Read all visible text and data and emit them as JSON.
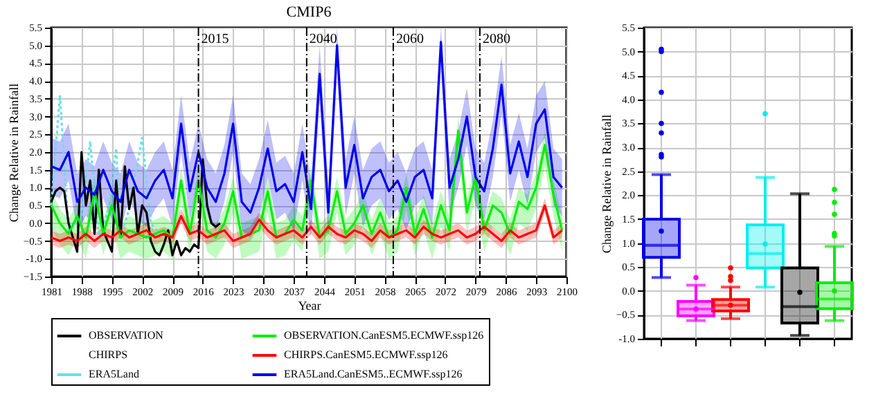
{
  "chart_data": [
    {
      "type": "line",
      "title": "CMIP6",
      "xlabel": "Year",
      "ylabel": "Change Relative in Rainfall",
      "xlim": [
        1981,
        2100
      ],
      "xticks": [
        1981,
        1988,
        1995,
        2002,
        2009,
        2016,
        2023,
        2030,
        2037,
        2044,
        2051,
        2058,
        2065,
        2072,
        2079,
        2086,
        2093,
        2100
      ],
      "ylim": [
        -1.5,
        5.5
      ],
      "yticks": [
        -1.5,
        {
          "value": -1,
          "label": "-1.0"
        },
        -0.5,
        {
          "value": 0,
          "label": "0.0"
        },
        0.5,
        {
          "value": 1,
          "label": "1.0"
        },
        1.5,
        {
          "value": 2,
          "label": "2.0"
        },
        2.5,
        {
          "value": 3,
          "label": "3.0"
        },
        3.5,
        {
          "value": 4,
          "label": "4.0"
        },
        4.5,
        {
          "value": 5,
          "label": "5.0"
        },
        5.5
      ],
      "grid": true,
      "legend": "bottom",
      "line_style": "solid",
      "ref_lines": [
        {
          "axis": "x",
          "value": 2015,
          "label": "2015"
        },
        {
          "axis": "x",
          "value": 2040,
          "label": "2040"
        },
        {
          "axis": "x",
          "value": 2060,
          "label": "2060"
        },
        {
          "axis": "x",
          "value": 2080,
          "label": "2080"
        }
      ],
      "series": [
        {
          "name": "OBSERVATION",
          "color": "#000000",
          "x": [
            1981,
            1982,
            1983,
            1984,
            1985,
            1986,
            1987,
            1988,
            1989,
            1990,
            1991,
            1992,
            1993,
            1994,
            1995,
            1996,
            1997,
            1998,
            1999,
            2000,
            2001,
            2002,
            2003,
            2004,
            2005,
            2006,
            2007,
            2008,
            2009,
            2010,
            2011,
            2012,
            2013,
            2014,
            2015,
            2016,
            2017,
            2018,
            2019,
            2020
          ],
          "values": [
            0.6,
            0.9,
            1.0,
            0.9,
            0.0,
            -0.4,
            -0.8,
            2.0,
            0.5,
            1.2,
            -0.3,
            1.5,
            -0.2,
            -0.5,
            -0.8,
            1.2,
            -0.4,
            1.6,
            0.4,
            1.0,
            -0.3,
            0.5,
            0.3,
            -0.5,
            -0.8,
            -0.9,
            -0.6,
            -0.2,
            -0.9,
            -0.5,
            -0.9,
            -0.7,
            -0.8,
            -0.6,
            -0.7,
            1.8,
            0.5,
            0.0,
            -0.1,
            0.0
          ]
        },
        {
          "name": "OBSERVATION.CanESM5.ECMWF.ssp126",
          "color": "#00ee00",
          "x": [
            1981,
            1983,
            1985,
            1987,
            1989,
            1991,
            1993,
            1995,
            1997,
            1999,
            2001,
            2003,
            2005,
            2007,
            2009,
            2011,
            2013,
            2015,
            2017,
            2019,
            2021,
            2023,
            2025,
            2027,
            2029,
            2031,
            2033,
            2035,
            2037,
            2039,
            2041,
            2043,
            2045,
            2047,
            2049,
            2051,
            2053,
            2055,
            2057,
            2059,
            2061,
            2063,
            2065,
            2067,
            2069,
            2071,
            2073,
            2075,
            2077,
            2079,
            2081,
            2083,
            2085,
            2087,
            2089,
            2091,
            2093,
            2095,
            2097,
            2099
          ],
          "values": [
            0.5,
            0.0,
            -0.3,
            0.2,
            -0.4,
            0.9,
            -0.3,
            0.5,
            -0.4,
            -0.2,
            -0.3,
            -0.4,
            -0.3,
            -0.2,
            -0.4,
            1.2,
            -0.3,
            1.2,
            -0.2,
            -0.4,
            0.0,
            0.9,
            -0.4,
            -0.3,
            -0.2,
            0.9,
            -0.4,
            -0.3,
            0.1,
            -0.2,
            1.2,
            -0.4,
            -0.2,
            0.9,
            -0.3,
            0.0,
            0.5,
            -0.3,
            0.3,
            -0.4,
            -0.2,
            1.0,
            -0.3,
            0.4,
            -0.4,
            0.5,
            -0.2,
            2.6,
            0.3,
            1.3,
            -0.2,
            0.5,
            0.3,
            -0.3,
            0.6,
            0.4,
            1.0,
            2.2,
            0.8,
            -0.2
          ],
          "upper": [
            0.9,
            0.4,
            0.1,
            0.6,
            0.0,
            1.3,
            0.1,
            0.9,
            0.0,
            0.2,
            0.1,
            0.0,
            0.1,
            0.2,
            0.0,
            1.6,
            0.1,
            1.6,
            0.2,
            0.0,
            0.4,
            1.3,
            0.0,
            0.1,
            0.2,
            1.3,
            0.0,
            0.1,
            0.5,
            0.2,
            1.6,
            0.0,
            0.2,
            1.3,
            0.1,
            0.4,
            0.9,
            0.1,
            0.7,
            0.0,
            0.2,
            1.4,
            0.1,
            0.8,
            0.0,
            0.9,
            0.2,
            3.0,
            0.7,
            1.7,
            0.2,
            0.9,
            0.7,
            0.1,
            1.0,
            0.8,
            1.4,
            2.6,
            1.2,
            0.2
          ],
          "lower": [
            -0.1,
            -0.6,
            -0.9,
            -0.4,
            -1.0,
            0.3,
            -0.9,
            -0.1,
            -1.0,
            -0.8,
            -0.9,
            -1.0,
            -0.9,
            -0.8,
            -1.0,
            0.6,
            -0.9,
            0.6,
            -0.8,
            -1.0,
            -0.6,
            0.3,
            -1.0,
            -0.9,
            -0.8,
            0.3,
            -1.0,
            -0.9,
            -0.5,
            -0.8,
            0.6,
            -1.0,
            -0.8,
            0.3,
            -0.9,
            -0.6,
            -0.1,
            -0.9,
            -0.3,
            -1.0,
            -0.8,
            0.4,
            -0.9,
            -0.2,
            -1.0,
            -0.1,
            -0.8,
            2.0,
            -0.3,
            0.7,
            -0.8,
            -0.1,
            -0.3,
            -0.9,
            0.0,
            -0.2,
            0.4,
            1.6,
            0.2,
            -0.8
          ]
        },
        {
          "name": "CHIRPS"
        },
        {
          "name": "CHIRPS.CanESM5.ECMWF.ssp126",
          "color": "#ff0000",
          "x": [
            1981,
            1983,
            1985,
            1987,
            1989,
            1991,
            1993,
            1995,
            1997,
            1999,
            2001,
            2003,
            2005,
            2007,
            2009,
            2011,
            2013,
            2015,
            2017,
            2019,
            2021,
            2023,
            2025,
            2027,
            2029,
            2031,
            2033,
            2035,
            2037,
            2039,
            2041,
            2043,
            2045,
            2047,
            2049,
            2051,
            2053,
            2055,
            2057,
            2059,
            2061,
            2063,
            2065,
            2067,
            2069,
            2071,
            2073,
            2075,
            2077,
            2079,
            2081,
            2083,
            2085,
            2087,
            2089,
            2091,
            2093,
            2095,
            2097,
            2099
          ],
          "values": [
            -0.4,
            -0.5,
            -0.4,
            -0.5,
            -0.3,
            -0.5,
            -0.3,
            -0.4,
            -0.2,
            -0.4,
            -0.3,
            -0.2,
            -0.4,
            -0.3,
            -0.4,
            0.2,
            -0.3,
            -0.2,
            -0.4,
            -0.3,
            -0.2,
            -0.5,
            -0.4,
            -0.3,
            0.1,
            -0.2,
            -0.4,
            -0.3,
            -0.2,
            -0.4,
            -0.1,
            -0.4,
            -0.1,
            -0.3,
            -0.4,
            -0.2,
            -0.3,
            -0.5,
            -0.2,
            -0.4,
            -0.3,
            -0.2,
            -0.4,
            -0.1,
            -0.3,
            -0.4,
            -0.3,
            -0.2,
            -0.4,
            -0.3,
            -0.1,
            -0.3,
            -0.5,
            -0.2,
            -0.4,
            -0.3,
            -0.2,
            0.5,
            -0.4,
            -0.2
          ],
          "upper": [
            -0.2,
            -0.3,
            -0.2,
            -0.3,
            -0.1,
            -0.3,
            -0.1,
            -0.2,
            0.0,
            -0.2,
            -0.1,
            0.0,
            -0.2,
            -0.1,
            -0.2,
            0.4,
            -0.1,
            0.0,
            -0.2,
            -0.1,
            0.0,
            -0.3,
            -0.2,
            -0.1,
            0.3,
            0.0,
            -0.2,
            -0.1,
            0.0,
            -0.2,
            0.1,
            -0.2,
            0.1,
            -0.1,
            -0.2,
            0.0,
            -0.1,
            -0.3,
            0.0,
            -0.2,
            -0.1,
            0.0,
            -0.2,
            0.1,
            -0.1,
            -0.2,
            -0.1,
            0.0,
            -0.2,
            -0.1,
            0.1,
            -0.1,
            -0.3,
            0.0,
            -0.2,
            -0.1,
            0.0,
            0.7,
            -0.2,
            0.0
          ],
          "lower": [
            -0.6,
            -0.7,
            -0.6,
            -0.7,
            -0.5,
            -0.7,
            -0.5,
            -0.6,
            -0.4,
            -0.6,
            -0.5,
            -0.4,
            -0.6,
            -0.5,
            -0.6,
            0.0,
            -0.5,
            -0.4,
            -0.6,
            -0.5,
            -0.4,
            -0.7,
            -0.6,
            -0.5,
            -0.1,
            -0.4,
            -0.6,
            -0.5,
            -0.4,
            -0.6,
            -0.3,
            -0.6,
            -0.3,
            -0.5,
            -0.6,
            -0.4,
            -0.5,
            -0.7,
            -0.4,
            -0.6,
            -0.5,
            -0.4,
            -0.6,
            -0.3,
            -0.5,
            -0.6,
            -0.5,
            -0.4,
            -0.6,
            -0.5,
            -0.3,
            -0.5,
            -0.7,
            -0.4,
            -0.6,
            -0.5,
            -0.4,
            0.3,
            -0.6,
            -0.4
          ]
        },
        {
          "name": "ERA5Land",
          "color": "#66e0e8",
          "line_style": "dotted",
          "x": [
            1981,
            1983,
            1985,
            1988,
            1990,
            1992,
            1994,
            1996,
            1997,
            1999,
            2002,
            2004,
            2006
          ],
          "values": [
            0.5,
            3.6,
            -0.2,
            0.2,
            2.3,
            -0.5,
            0.3,
            2.1,
            -0.4,
            0.4,
            2.4,
            0.0,
            -0.3
          ]
        },
        {
          "name": "ERA5Land.CanESM5..ECMWF.ssp126",
          "color": "#0000ee",
          "x": [
            1981,
            1983,
            1985,
            1987,
            1989,
            1991,
            1993,
            1995,
            1997,
            1999,
            2001,
            2003,
            2005,
            2007,
            2009,
            2011,
            2013,
            2015,
            2017,
            2019,
            2021,
            2023,
            2025,
            2027,
            2029,
            2031,
            2033,
            2035,
            2037,
            2039,
            2041,
            2043,
            2045,
            2047,
            2049,
            2051,
            2053,
            2055,
            2057,
            2059,
            2061,
            2063,
            2065,
            2067,
            2069,
            2071,
            2073,
            2075,
            2077,
            2079,
            2081,
            2083,
            2085,
            2087,
            2089,
            2091,
            2093,
            2095,
            2097,
            2099
          ],
          "values": [
            1.6,
            1.5,
            2.0,
            0.6,
            1.0,
            0.8,
            1.5,
            0.9,
            0.6,
            1.5,
            0.9,
            0.7,
            1.2,
            1.5,
            0.7,
            2.8,
            0.9,
            2.0,
            1.0,
            0.6,
            1.4,
            2.8,
            0.6,
            0.3,
            1.0,
            2.1,
            0.9,
            1.1,
            0.6,
            2.0,
            0.4,
            4.2,
            0.3,
            5.0,
            1.0,
            2.2,
            0.7,
            1.3,
            1.5,
            0.9,
            1.2,
            0.6,
            1.3,
            1.5,
            0.7,
            5.1,
            1.0,
            1.8,
            3.0,
            1.3,
            0.9,
            2.1,
            3.9,
            1.4,
            2.3,
            1.3,
            2.8,
            3.2,
            1.3,
            1.0
          ],
          "upper": [
            2.4,
            2.3,
            2.8,
            1.4,
            1.8,
            1.6,
            2.3,
            1.7,
            1.4,
            2.3,
            1.7,
            1.5,
            2.0,
            2.3,
            1.5,
            3.6,
            1.7,
            2.8,
            1.8,
            1.4,
            2.2,
            3.6,
            1.4,
            1.1,
            1.8,
            2.9,
            1.7,
            1.9,
            1.4,
            2.8,
            1.2,
            5.0,
            1.1,
            5.5,
            1.8,
            3.0,
            1.5,
            2.1,
            2.3,
            1.7,
            2.0,
            1.4,
            2.1,
            2.3,
            1.5,
            5.5,
            1.8,
            2.6,
            3.8,
            2.1,
            1.7,
            2.9,
            4.7,
            2.2,
            3.1,
            2.1,
            3.6,
            4.0,
            2.1,
            1.8
          ],
          "lower": [
            0.8,
            0.7,
            1.2,
            -0.2,
            0.2,
            0.0,
            0.7,
            0.1,
            -0.2,
            0.7,
            0.1,
            -0.1,
            0.4,
            0.7,
            -0.1,
            2.0,
            0.1,
            1.2,
            0.2,
            -0.2,
            0.6,
            2.0,
            -0.2,
            -0.4,
            0.2,
            1.3,
            0.1,
            0.3,
            -0.2,
            1.2,
            -0.4,
            3.4,
            -0.4,
            4.2,
            0.2,
            1.4,
            -0.1,
            0.5,
            0.7,
            0.1,
            0.4,
            -0.2,
            0.5,
            0.7,
            -0.1,
            4.3,
            0.2,
            1.0,
            2.2,
            0.5,
            0.1,
            1.3,
            3.1,
            0.6,
            1.5,
            0.5,
            2.0,
            2.4,
            0.5,
            0.2
          ]
        }
      ]
    },
    {
      "type": "box",
      "ylabel": "Change Relative in Rainfall",
      "ylim": [
        -1.0,
        5.5
      ],
      "yticks": [
        {
          "value": -1,
          "label": "-1.0"
        },
        -0.5,
        {
          "value": 0,
          "label": "0.0"
        },
        0.5,
        {
          "value": 1,
          "label": "1.0"
        },
        1.5,
        {
          "value": 2,
          "label": "2.0"
        },
        2.5,
        {
          "value": 3,
          "label": "3.0"
        },
        3.5,
        {
          "value": 4,
          "label": "4.0"
        },
        4.5,
        {
          "value": 5,
          "label": "5.0"
        },
        5.5
      ],
      "grid": true,
      "categories": [
        null,
        null,
        null,
        null,
        null,
        null
      ],
      "colors": [
        "#0000ee",
        "#ff00ff",
        "#ff0000",
        "#00eeee",
        "#000000",
        "#00ee00"
      ],
      "boxes": [
        {
          "low": 0.28,
          "q1": 0.7,
          "median": 0.95,
          "q3": 1.5,
          "high": 2.43,
          "mean": 1.25,
          "outliers": [
            2.8,
            2.85,
            3.3,
            3.5,
            4.15,
            5.0,
            5.05
          ]
        },
        {
          "low": -0.62,
          "q1": -0.52,
          "median": -0.38,
          "q3": -0.22,
          "high": 0.12,
          "mean": -0.38,
          "outliers": [
            0.28
          ]
        },
        {
          "low": -0.58,
          "q1": -0.42,
          "median": -0.3,
          "q3": -0.18,
          "high": 0.08,
          "mean": -0.3,
          "outliers": [
            0.22,
            0.3,
            0.48
          ]
        },
        {
          "low": 0.08,
          "q1": 0.48,
          "median": 0.78,
          "q3": 1.38,
          "high": 2.37,
          "mean": 0.98,
          "outliers": [
            3.7
          ]
        },
        {
          "low": -0.93,
          "q1": -0.67,
          "median": -0.33,
          "q3": 0.48,
          "high": 2.03,
          "mean": -0.03
        },
        {
          "low": -0.62,
          "q1": -0.37,
          "median": -0.17,
          "q3": 0.17,
          "high": 0.93,
          "mean": 0.0,
          "outliers": [
            1.15,
            1.2,
            1.6,
            1.85,
            2.12
          ]
        }
      ]
    }
  ]
}
